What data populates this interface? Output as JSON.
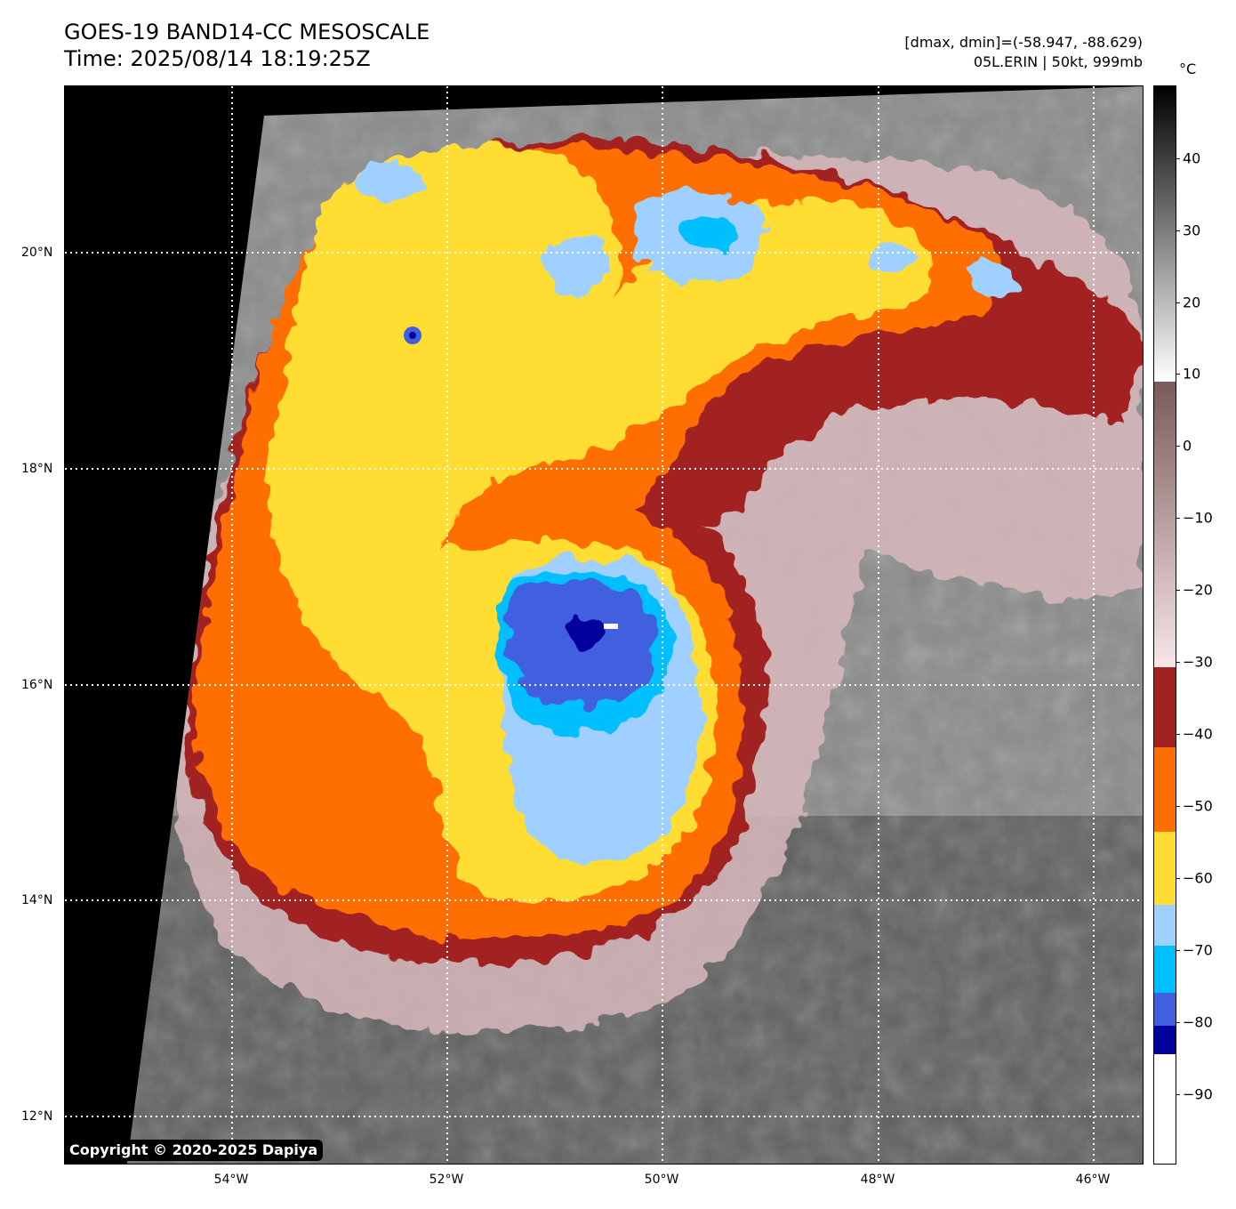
{
  "title": {
    "line1": "GOES-19 BAND14-CC MESOSCALE",
    "line2": "Time: 2025/08/14 18:19:25Z"
  },
  "info": {
    "line1": "[dmax, dmin]=(-58.947, -88.629)",
    "line2": "05L.ERIN | 50kt, 999mb"
  },
  "copyright": "Copyright © 2020-2025 Dapiya",
  "latitude_labels": [
    "20°N",
    "18°N",
    "16°N",
    "14°N",
    "12°N"
  ],
  "longitude_labels": [
    "54°W",
    "52°W",
    "50°W",
    "48°W",
    "46°W"
  ],
  "colorbar": {
    "unit": "°C",
    "ticks": [
      "40",
      "30",
      "20",
      "10",
      "0",
      "−10",
      "−20",
      "−30",
      "−40",
      "−50",
      "−60",
      "−70",
      "−80",
      "−90"
    ],
    "colors": {
      "below_-90": "#ffffff",
      "-90_to_-85": "#00009c",
      "-85_to_-80": "#4060e0",
      "-80_to_-73": "#00bfff",
      "-73_to_-63": "#a0d0ff",
      "-63_to_-53": "#ffdd33",
      "-53_to_-42": "#ff6e00",
      "-42_to_-31": "#a22222",
      "warm_low": "#f8e6e8",
      "warm_mid": "#7a5a5a",
      "gray_top": "#ffffff",
      "gray_bottom": "#000000"
    }
  },
  "storm": {
    "name": "05L.ERIN",
    "intensity": "50kt, 999mb"
  }
}
